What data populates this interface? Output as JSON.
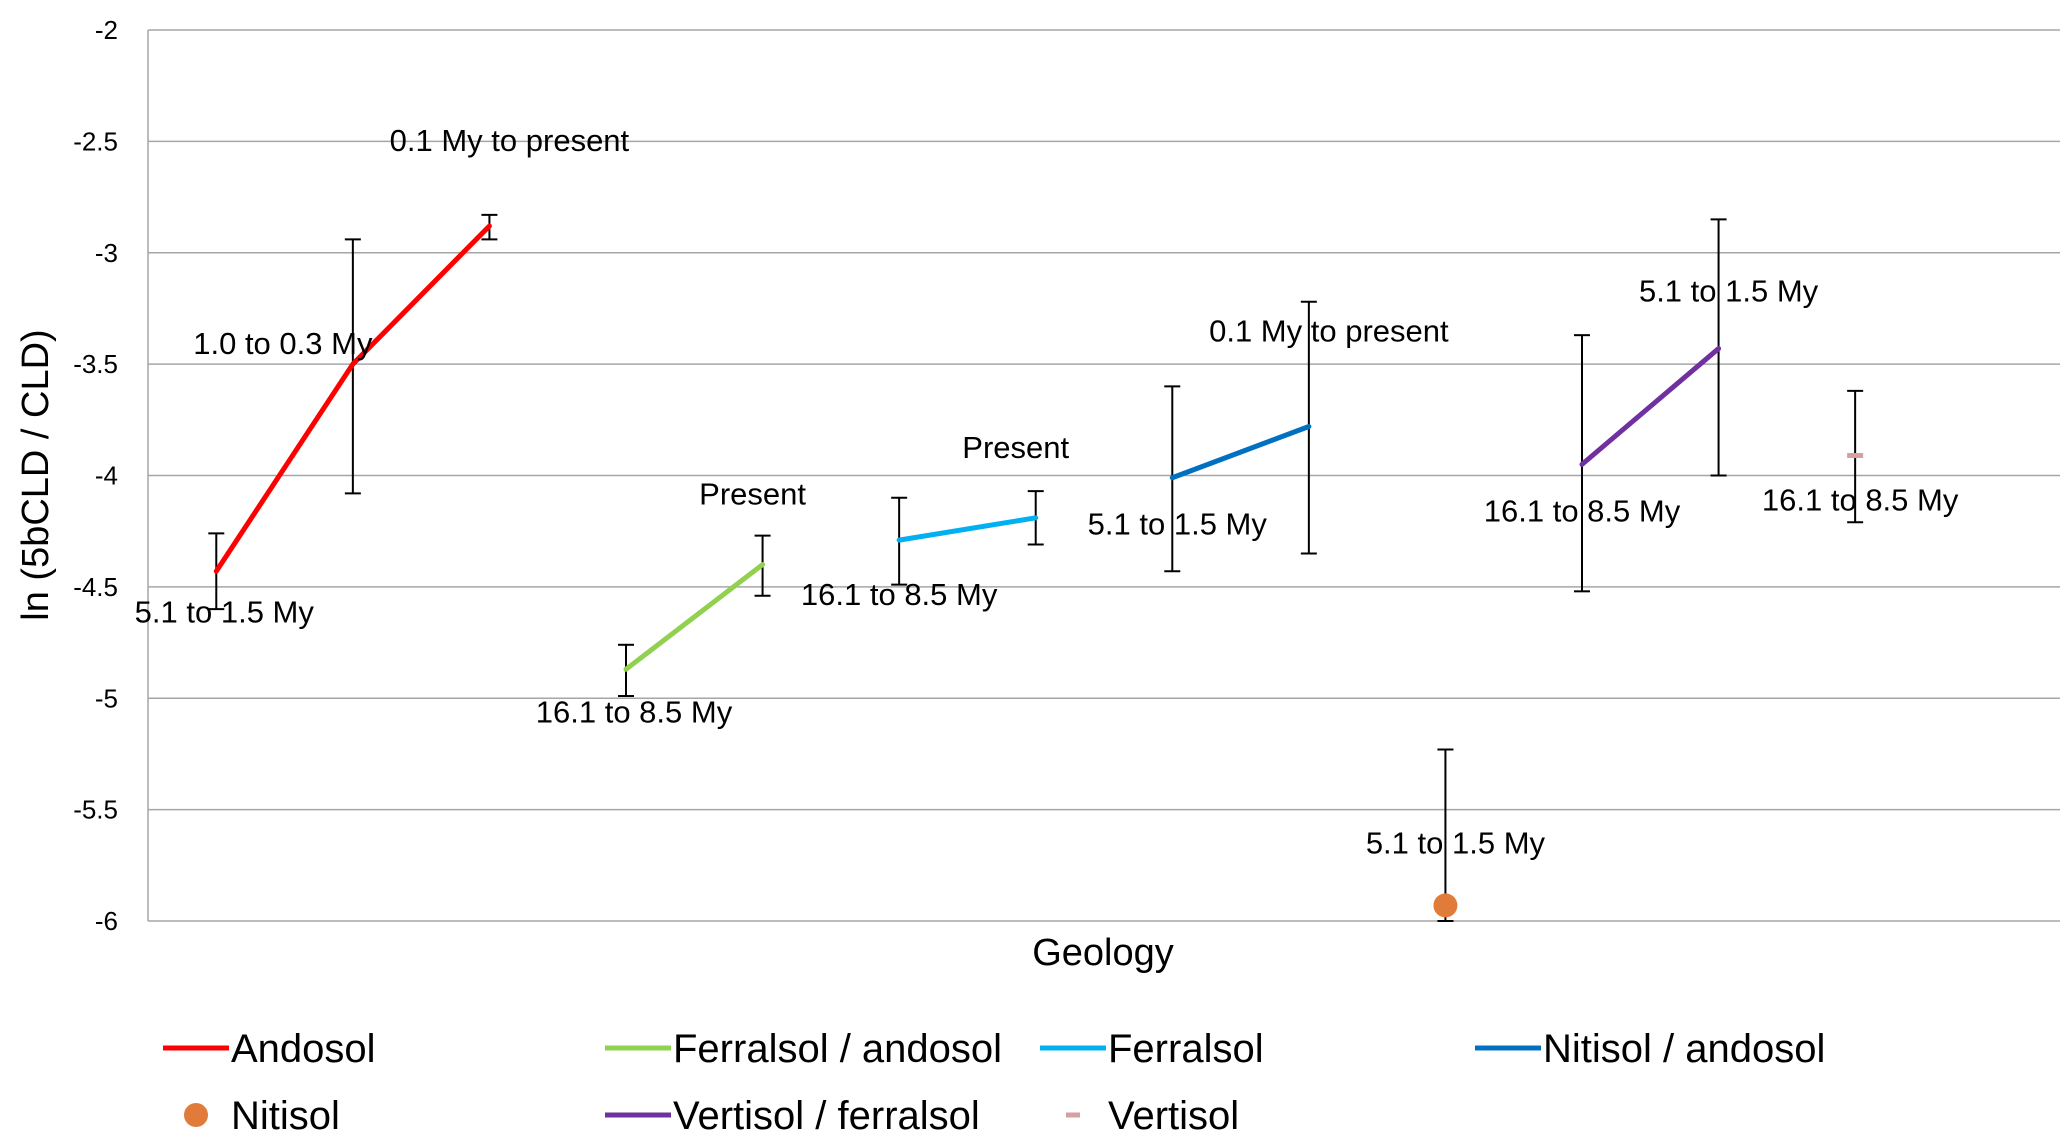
{
  "chart_data": {
    "type": "line",
    "xlabel": "Geology",
    "ylabel": "ln (5bCLD / CLD)",
    "ylim": [
      -6,
      -2
    ],
    "yticks": [
      "-2",
      "-2.5",
      "-3",
      "-3.5",
      "-4",
      "-4.5",
      "-5",
      "-5.5",
      "-6"
    ],
    "grid": "horizontal",
    "legend_position": "bottom",
    "n_categories": 14,
    "series": [
      {
        "name": "Andosol",
        "color": "#ff0000",
        "marker": "line",
        "points": [
          {
            "x": 1,
            "y": -4.43,
            "err_low": -4.6,
            "err_high": -4.26,
            "label": "5.1 to 1.5 My"
          },
          {
            "x": 2,
            "y": -3.5,
            "err_low": -4.08,
            "err_high": -2.94,
            "label": "1.0 to 0.3 My"
          },
          {
            "x": 3,
            "y": -2.88,
            "err_low": -2.94,
            "err_high": -2.83,
            "label": "0.1 My to present"
          }
        ]
      },
      {
        "name": "Ferralsol / andosol",
        "color": "#92d050",
        "marker": "line",
        "points": [
          {
            "x": 4,
            "y": -4.87,
            "err_low": -4.99,
            "err_high": -4.76,
            "label": "16.1 to 8.5 My"
          },
          {
            "x": 5,
            "y": -4.4,
            "err_low": -4.54,
            "err_high": -4.27,
            "label": "Present"
          }
        ]
      },
      {
        "name": "Ferralsol",
        "color": "#00b0f0",
        "marker": "line",
        "points": [
          {
            "x": 6,
            "y": -4.29,
            "err_low": -4.49,
            "err_high": -4.1,
            "label": "16.1 to 8.5 My"
          },
          {
            "x": 7,
            "y": -4.19,
            "err_low": -4.31,
            "err_high": -4.07,
            "label": "Present"
          }
        ]
      },
      {
        "name": "Nitisol / andosol",
        "color": "#0070c0",
        "marker": "line",
        "points": [
          {
            "x": 8,
            "y": -4.01,
            "err_low": -4.43,
            "err_high": -3.6,
            "label": "5.1 to 1.5 My"
          },
          {
            "x": 9,
            "y": -3.78,
            "err_low": -4.35,
            "err_high": -3.22,
            "label": "0.1 My to present"
          }
        ]
      },
      {
        "name": "Nitisol",
        "color": "#e07b39",
        "marker": "circle",
        "points": [
          {
            "x": 10,
            "y": -5.93,
            "err_low": -6.0,
            "err_high": -5.23,
            "label": "5.1 to 1.5 My"
          }
        ]
      },
      {
        "name": "Vertisol / ferralsol",
        "color": "#7030a0",
        "marker": "line",
        "points": [
          {
            "x": 11,
            "y": -3.95,
            "err_low": -4.52,
            "err_high": -3.37,
            "label": "16.1 to 8.5 My"
          },
          {
            "x": 12,
            "y": -3.43,
            "err_low": -4.0,
            "err_high": -2.85,
            "label": "5.1 to 1.5 My"
          }
        ]
      },
      {
        "name": "Vertisol",
        "color": "#d4a0a0",
        "marker": "dash",
        "points": [
          {
            "x": 13,
            "y": -3.91,
            "err_low": -4.21,
            "err_high": -3.62,
            "label": "16.1 to 8.5 My"
          }
        ]
      }
    ]
  }
}
